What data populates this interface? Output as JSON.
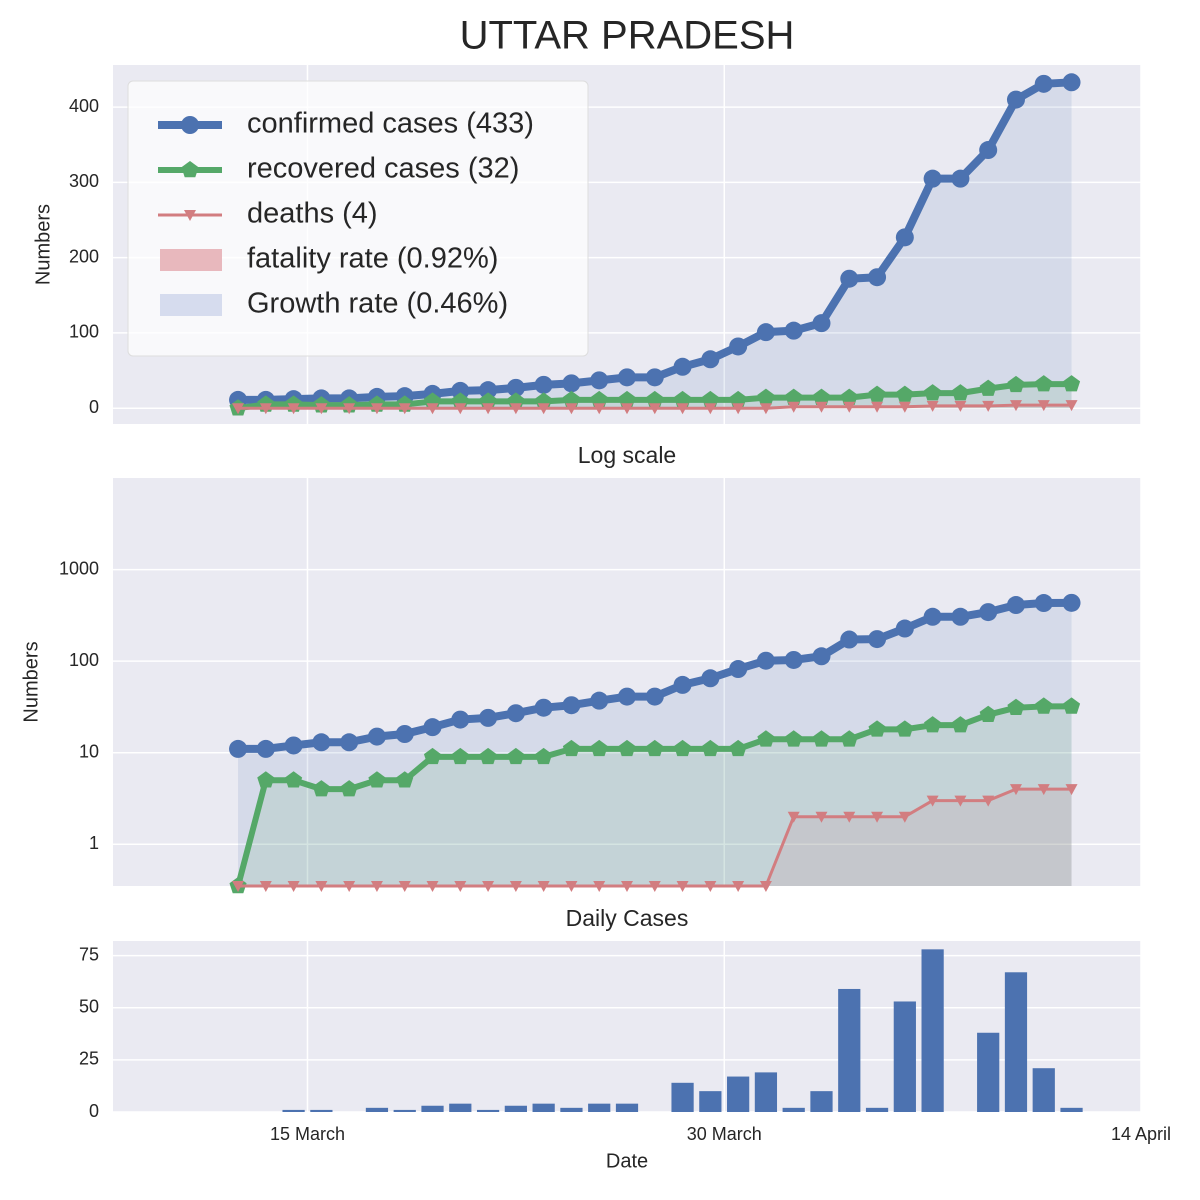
{
  "chart_data": [
    {
      "type": "line",
      "title": "UTTAR PRADESH",
      "ylabel": "Numbers",
      "x": [
        "12 March",
        "13 March",
        "14 March",
        "15 March",
        "16 March",
        "17 March",
        "18 March",
        "19 March",
        "20 March",
        "21 March",
        "22 March",
        "23 March",
        "24 March",
        "25 March",
        "26 March",
        "27 March",
        "28 March",
        "29 March",
        "30 March",
        "31 March",
        "1 April",
        "2 April",
        "3 April",
        "4 April",
        "5 April",
        "6 April",
        "7 April",
        "8 April",
        "9 April",
        "10 April",
        "11 April"
      ],
      "xlim": [
        "8 March",
        "14 April"
      ],
      "xticks": [
        "15 March",
        "30 March",
        "14 April"
      ],
      "ylim": [
        -21,
        456
      ],
      "yticks": [
        0,
        100,
        200,
        300,
        400
      ],
      "grid": true,
      "legend": "upper left",
      "series": [
        {
          "name": "confirmed cases (433)",
          "color": "#4c72b0",
          "values": [
            11,
            11,
            12,
            13,
            13,
            15,
            16,
            19,
            23,
            24,
            27,
            31,
            33,
            37,
            41,
            41,
            55,
            65,
            82,
            101,
            103,
            113,
            172,
            174,
            227,
            305,
            305,
            343,
            410,
            431,
            433
          ]
        },
        {
          "name": "recovered cases (32)",
          "color": "#55a868",
          "values": [
            0,
            5,
            5,
            4,
            4,
            5,
            5,
            9,
            9,
            9,
            9,
            9,
            11,
            11,
            11,
            11,
            11,
            11,
            11,
            14,
            14,
            14,
            14,
            18,
            18,
            20,
            20,
            26,
            31,
            32,
            32
          ]
        },
        {
          "name": "deaths (4)",
          "color": "#d27d80",
          "values": [
            0,
            0,
            0,
            0,
            0,
            0,
            0,
            0,
            0,
            0,
            0,
            0,
            0,
            0,
            0,
            0,
            0,
            0,
            0,
            0,
            2,
            2,
            2,
            2,
            2,
            3,
            3,
            3,
            4,
            4,
            4
          ]
        }
      ],
      "fills": [
        {
          "name": "fatality rate (0.92%)",
          "color": "#e8b8bd"
        },
        {
          "name": "Growth rate (0.46%)",
          "color": "#d6dcee"
        }
      ]
    },
    {
      "type": "line",
      "title": "Log scale",
      "ylabel": "Numbers",
      "log": true,
      "x": [
        "12 March",
        "13 March",
        "14 March",
        "15 March",
        "16 March",
        "17 March",
        "18 March",
        "19 March",
        "20 March",
        "21 March",
        "22 March",
        "23 March",
        "24 March",
        "25 March",
        "26 March",
        "27 March",
        "28 March",
        "29 March",
        "30 March",
        "31 March",
        "1 April",
        "2 April",
        "3 April",
        "4 April",
        "5 April",
        "6 April",
        "7 April",
        "8 April",
        "9 April",
        "10 April",
        "11 April"
      ],
      "xlim": [
        "8 March",
        "14 April"
      ],
      "xticks": [
        "15 March",
        "30 March",
        "14 April"
      ],
      "ylim": [
        0.35,
        10000
      ],
      "yticks": [
        1,
        10,
        100,
        1000
      ],
      "grid": true,
      "series": [
        {
          "color": "#4c72b0",
          "values": [
            11,
            11,
            12,
            13,
            13,
            15,
            16,
            19,
            23,
            24,
            27,
            31,
            33,
            37,
            41,
            41,
            55,
            65,
            82,
            101,
            103,
            113,
            172,
            174,
            227,
            305,
            305,
            343,
            410,
            431,
            433
          ]
        },
        {
          "color": "#55a868",
          "values": [
            0,
            5,
            5,
            4,
            4,
            5,
            5,
            9,
            9,
            9,
            9,
            9,
            11,
            11,
            11,
            11,
            11,
            11,
            11,
            14,
            14,
            14,
            14,
            18,
            18,
            20,
            20,
            26,
            31,
            32,
            32
          ]
        },
        {
          "color": "#d27d80",
          "values": [
            0,
            0,
            0,
            0,
            0,
            0,
            0,
            0,
            0,
            0,
            0,
            0,
            0,
            0,
            0,
            0,
            0,
            0,
            0,
            0,
            2,
            2,
            2,
            2,
            2,
            3,
            3,
            3,
            4,
            4,
            4
          ]
        }
      ]
    },
    {
      "type": "bar",
      "title": "Daily Cases",
      "xlabel": "Date",
      "color": "#4c72b0",
      "x": [
        "12 March",
        "13 March",
        "14 March",
        "15 March",
        "16 March",
        "17 March",
        "18 March",
        "19 March",
        "20 March",
        "21 March",
        "22 March",
        "23 March",
        "24 March",
        "25 March",
        "26 March",
        "27 March",
        "28 March",
        "29 March",
        "30 March",
        "31 March",
        "1 April",
        "2 April",
        "3 April",
        "4 April",
        "5 April",
        "6 April",
        "7 April",
        "8 April",
        "9 April",
        "10 April",
        "11 April"
      ],
      "xlim": [
        "8 March",
        "14 April"
      ],
      "xticks": [
        "15 March",
        "30 March",
        "14 April"
      ],
      "ylim": [
        0,
        82
      ],
      "yticks": [
        0,
        25,
        50,
        75
      ],
      "grid": true,
      "values": [
        0,
        0,
        1,
        1,
        0,
        2,
        1,
        3,
        4,
        1,
        3,
        4,
        2,
        4,
        4,
        0,
        14,
        10,
        17,
        19,
        2,
        10,
        59,
        2,
        53,
        78,
        0,
        38,
        67,
        21,
        2
      ]
    }
  ]
}
